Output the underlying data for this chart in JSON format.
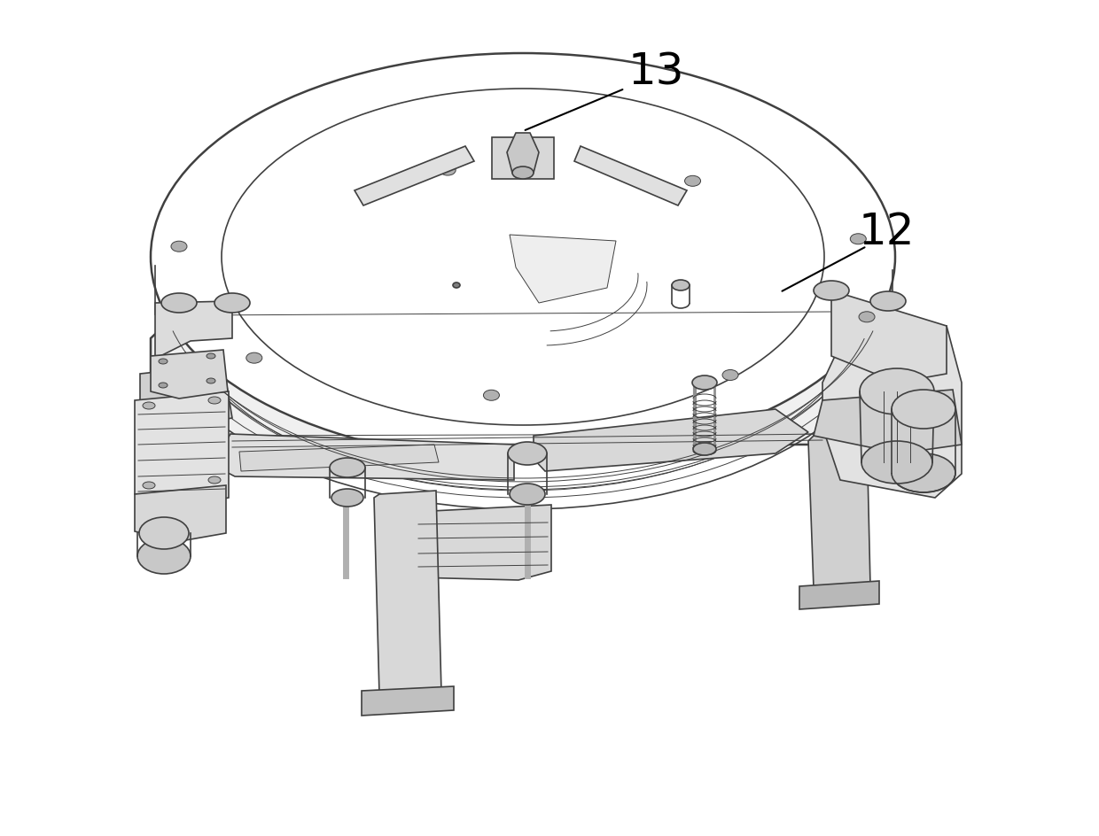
{
  "title": "",
  "background_color": "#ffffff",
  "line_color": "#404040",
  "label_color": "#000000",
  "label_13": "13",
  "label_12": "12",
  "figsize": [
    12.4,
    9.44
  ],
  "dpi": 100
}
